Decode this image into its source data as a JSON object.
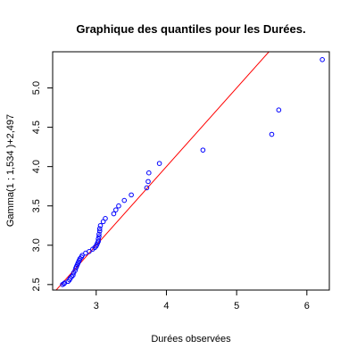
{
  "chart_data": {
    "type": "scatter",
    "title": "Graphique des quantiles pour les Durées.",
    "xlabel": "Durées observées",
    "ylabel": "Gamma(1 ; 1,534 )+2,497",
    "xlim": [
      2.38,
      6.32
    ],
    "ylim": [
      2.43,
      5.46
    ],
    "x_ticks": [
      3,
      4,
      5,
      6
    ],
    "x_tick_labels": [
      "3",
      "4",
      "5",
      "6"
    ],
    "y_ticks": [
      2.5,
      3.0,
      3.5,
      4.0,
      4.5,
      5.0
    ],
    "y_tick_labels": [
      "2.5",
      "3.0",
      "3.5",
      "4.0",
      "4.5",
      "5.0"
    ],
    "grid": false,
    "point_color": "#0000ff",
    "line_color": "#ff0000",
    "reference_line": {
      "intercept": 0,
      "slope": 1
    },
    "points": [
      [
        2.52,
        2.5
      ],
      [
        2.54,
        2.51
      ],
      [
        2.55,
        2.52
      ],
      [
        2.6,
        2.54
      ],
      [
        2.62,
        2.56
      ],
      [
        2.63,
        2.58
      ],
      [
        2.65,
        2.6
      ],
      [
        2.67,
        2.62
      ],
      [
        2.68,
        2.65
      ],
      [
        2.7,
        2.68
      ],
      [
        2.71,
        2.71
      ],
      [
        2.72,
        2.73
      ],
      [
        2.73,
        2.75
      ],
      [
        2.74,
        2.77
      ],
      [
        2.75,
        2.79
      ],
      [
        2.76,
        2.81
      ],
      [
        2.77,
        2.83
      ],
      [
        2.79,
        2.85
      ],
      [
        2.8,
        2.87
      ],
      [
        2.85,
        2.9
      ],
      [
        2.9,
        2.92
      ],
      [
        2.95,
        2.95
      ],
      [
        2.98,
        2.97
      ],
      [
        3.0,
        2.99
      ],
      [
        3.01,
        3.01
      ],
      [
        3.02,
        3.03
      ],
      [
        3.03,
        3.05
      ],
      [
        3.03,
        3.08
      ],
      [
        3.04,
        3.11
      ],
      [
        3.04,
        3.14
      ],
      [
        3.05,
        3.18
      ],
      [
        3.05,
        3.21
      ],
      [
        3.06,
        3.25
      ],
      [
        3.1,
        3.3
      ],
      [
        3.13,
        3.34
      ],
      [
        3.25,
        3.4
      ],
      [
        3.28,
        3.45
      ],
      [
        3.32,
        3.5
      ],
      [
        3.4,
        3.57
      ],
      [
        3.5,
        3.64
      ],
      [
        3.72,
        3.73
      ],
      [
        3.74,
        3.81
      ],
      [
        3.75,
        3.92
      ],
      [
        3.9,
        4.04
      ],
      [
        4.52,
        4.21
      ],
      [
        5.5,
        4.41
      ],
      [
        5.6,
        4.72
      ],
      [
        6.22,
        5.36
      ]
    ]
  }
}
